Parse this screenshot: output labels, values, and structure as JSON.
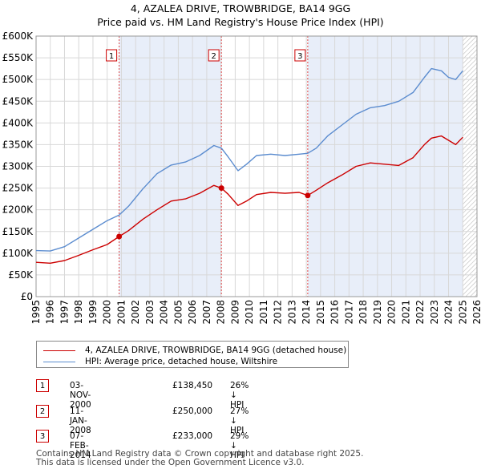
{
  "title_line1": "4, AZALEA DRIVE, TROWBRIDGE, BA14 9GG",
  "title_line2": "Price paid vs. HM Land Registry's House Price Index (HPI)",
  "colors": {
    "property": "#cc0000",
    "hpi": "#5b8ccf",
    "shade": "#e8eef9",
    "grid": "#d8d8d8",
    "marker_line": "#dd4444"
  },
  "chart_data": {
    "type": "line",
    "x_range": [
      1995,
      2026
    ],
    "ylim": [
      0,
      600000
    ],
    "y_ticks": [
      0,
      50000,
      100000,
      150000,
      200000,
      250000,
      300000,
      350000,
      400000,
      450000,
      500000,
      550000,
      600000
    ],
    "y_tick_labels": [
      "£0",
      "£50K",
      "£100K",
      "£150K",
      "£200K",
      "£250K",
      "£300K",
      "£350K",
      "£400K",
      "£450K",
      "£500K",
      "£550K",
      "£600K"
    ],
    "x_ticks": [
      1995,
      1996,
      1997,
      1998,
      1999,
      2000,
      2001,
      2002,
      2003,
      2004,
      2005,
      2006,
      2007,
      2008,
      2009,
      2010,
      2011,
      2012,
      2013,
      2014,
      2015,
      2016,
      2017,
      2018,
      2019,
      2020,
      2021,
      2022,
      2023,
      2024,
      2025,
      2026
    ],
    "x_tick_labels": [
      "1995",
      "1996",
      "1997",
      "1998",
      "1999",
      "2000",
      "2001",
      "2002",
      "2003",
      "2004",
      "2005",
      "2006",
      "2007",
      "2008",
      "2009",
      "2010",
      "2011",
      "2012",
      "2013",
      "2014",
      "2015",
      "2016",
      "2017",
      "2018",
      "2019",
      "2020",
      "2021",
      "2022",
      "2023",
      "2024",
      "2025",
      "2026"
    ],
    "grid": true,
    "shaded_spans": [
      [
        2000.84,
        2008.03
      ],
      [
        2014.1,
        2025.0
      ]
    ],
    "hatched_from": 2025.0,
    "series": [
      {
        "name": "4, AZALEA DRIVE, TROWBRIDGE, BA14 9GG (detached house)",
        "x": [
          1995.0,
          1996.0,
          1997.0,
          1998.0,
          1999.0,
          2000.0,
          2000.84,
          2001.5,
          2002.5,
          2003.5,
          2004.5,
          2005.5,
          2006.5,
          2007.5,
          2008.03,
          2008.5,
          2009.2,
          2009.8,
          2010.5,
          2011.5,
          2012.5,
          2013.5,
          2014.1,
          2014.7,
          2015.5,
          2016.5,
          2017.5,
          2018.5,
          2019.5,
          2020.5,
          2021.5,
          2022.3,
          2022.8,
          2023.5,
          2024.0,
          2024.5,
          2025.0
        ],
        "values": [
          79000,
          77000,
          83000,
          95000,
          108000,
          120000,
          138450,
          152000,
          178000,
          200000,
          220000,
          225000,
          238000,
          256000,
          250000,
          236000,
          210000,
          220000,
          235000,
          240000,
          238000,
          240000,
          233000,
          245000,
          262000,
          280000,
          300000,
          308000,
          305000,
          302000,
          320000,
          350000,
          365000,
          370000,
          360000,
          350000,
          367000
        ]
      },
      {
        "name": "HPI: Average price, detached house, Wiltshire",
        "x": [
          1995.0,
          1996.0,
          1997.0,
          1998.0,
          1999.0,
          2000.0,
          2000.84,
          2001.5,
          2002.5,
          2003.5,
          2004.5,
          2005.5,
          2006.5,
          2007.5,
          2008.03,
          2008.5,
          2009.2,
          2009.8,
          2010.5,
          2011.5,
          2012.5,
          2013.5,
          2014.1,
          2014.7,
          2015.5,
          2016.5,
          2017.5,
          2018.5,
          2019.5,
          2020.5,
          2021.5,
          2022.3,
          2022.8,
          2023.5,
          2024.0,
          2024.5,
          2025.0
        ],
        "values": [
          106000,
          105000,
          115000,
          135000,
          155000,
          175000,
          188000,
          208000,
          248000,
          283000,
          303000,
          310000,
          325000,
          348000,
          342000,
          322000,
          290000,
          305000,
          325000,
          328000,
          325000,
          328000,
          330000,
          342000,
          370000,
          395000,
          420000,
          435000,
          440000,
          450000,
          470000,
          505000,
          525000,
          520000,
          505000,
          500000,
          520000
        ]
      }
    ],
    "markers": [
      {
        "label": "1",
        "x": 2000.84,
        "y": 138450
      },
      {
        "label": "2",
        "x": 2008.03,
        "y": 250000
      },
      {
        "label": "3",
        "x": 2014.1,
        "y": 233000
      }
    ]
  },
  "legend": [
    {
      "label": "4, AZALEA DRIVE, TROWBRIDGE, BA14 9GG (detached house)",
      "color": "#cc0000"
    },
    {
      "label": "HPI: Average price, detached house, Wiltshire",
      "color": "#5b8ccf"
    }
  ],
  "transactions": [
    {
      "num": "1",
      "date": "03-NOV-2000",
      "price": "£138,450",
      "hpi": "26% ↓ HPI"
    },
    {
      "num": "2",
      "date": "11-JAN-2008",
      "price": "£250,000",
      "hpi": "27% ↓ HPI"
    },
    {
      "num": "3",
      "date": "07-FEB-2014",
      "price": "£233,000",
      "hpi": "29% ↓ HPI"
    }
  ],
  "footer_line1": "Contains HM Land Registry data © Crown copyright and database right 2025.",
  "footer_line2": "This data is licensed under the Open Government Licence v3.0."
}
